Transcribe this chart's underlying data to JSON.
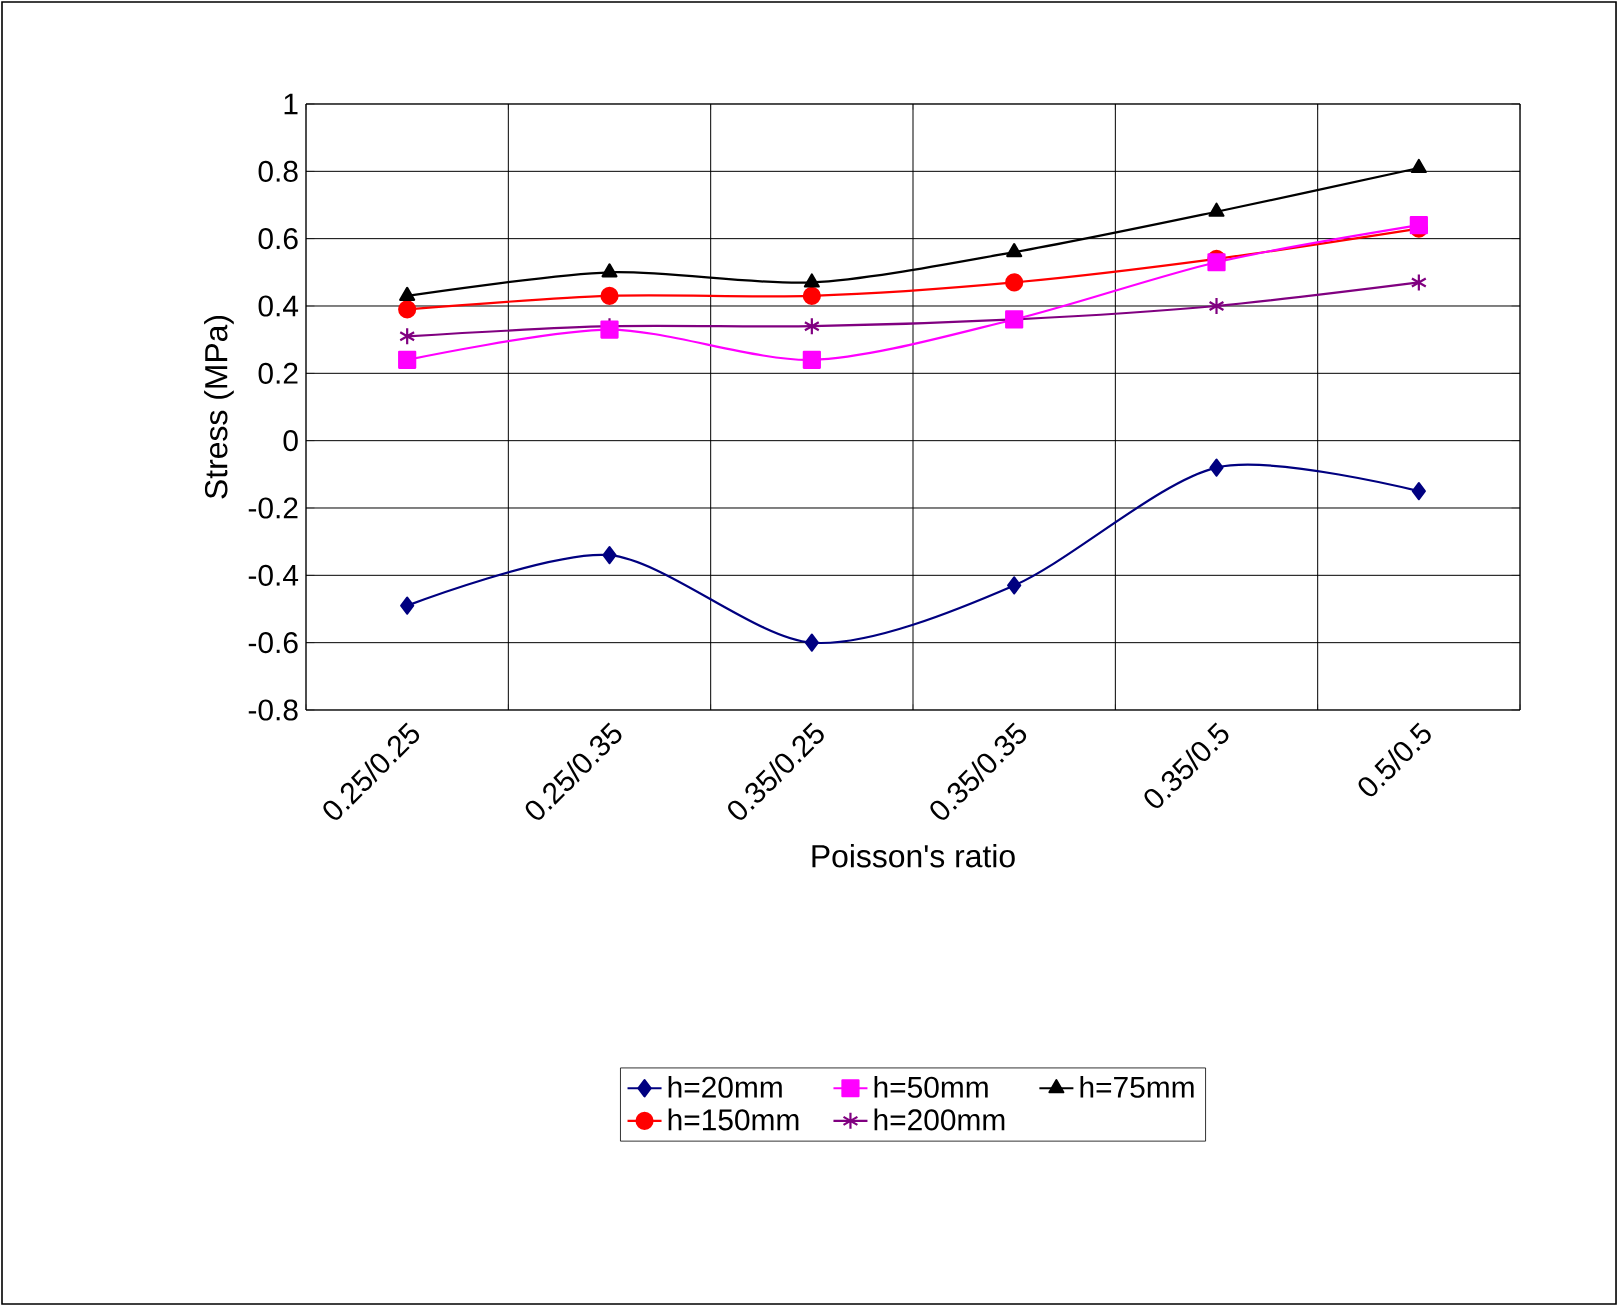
{
  "chart_data": {
    "type": "line",
    "xlabel": "Poisson's ratio",
    "ylabel": "Stress (MPa)",
    "categories": [
      "0.25/0.25",
      "0.25/0.35",
      "0.35/0.25",
      "0.35/0.35",
      "0.35/0.5",
      "0.5/0.5"
    ],
    "series": [
      {
        "name": "h=20mm",
        "color": "#000080",
        "marker": "diamond",
        "values": [
          -0.49,
          -0.34,
          -0.6,
          -0.43,
          -0.08,
          -0.15
        ]
      },
      {
        "name": "h=50mm",
        "color": "#ff00ff",
        "marker": "square",
        "values": [
          0.24,
          0.33,
          0.24,
          0.36,
          0.53,
          0.64
        ]
      },
      {
        "name": "h=75mm",
        "color": "#000000",
        "marker": "triangle",
        "values": [
          0.43,
          0.5,
          0.47,
          0.56,
          0.68,
          0.81
        ]
      },
      {
        "name": "h=150mm",
        "color": "#ff0000",
        "marker": "circle",
        "values": [
          0.39,
          0.43,
          0.43,
          0.47,
          0.54,
          0.63
        ]
      },
      {
        "name": "h=200mm",
        "color": "#800080",
        "marker": "cross",
        "values": [
          0.31,
          0.34,
          0.34,
          0.36,
          0.4,
          0.47
        ]
      }
    ],
    "ylim": [
      -0.8,
      1
    ],
    "yticks": [
      -0.8,
      -0.6,
      -0.4,
      -0.2,
      0,
      0.2,
      0.4,
      0.6,
      0.8,
      1
    ],
    "grid": true,
    "legend": "bottom"
  }
}
